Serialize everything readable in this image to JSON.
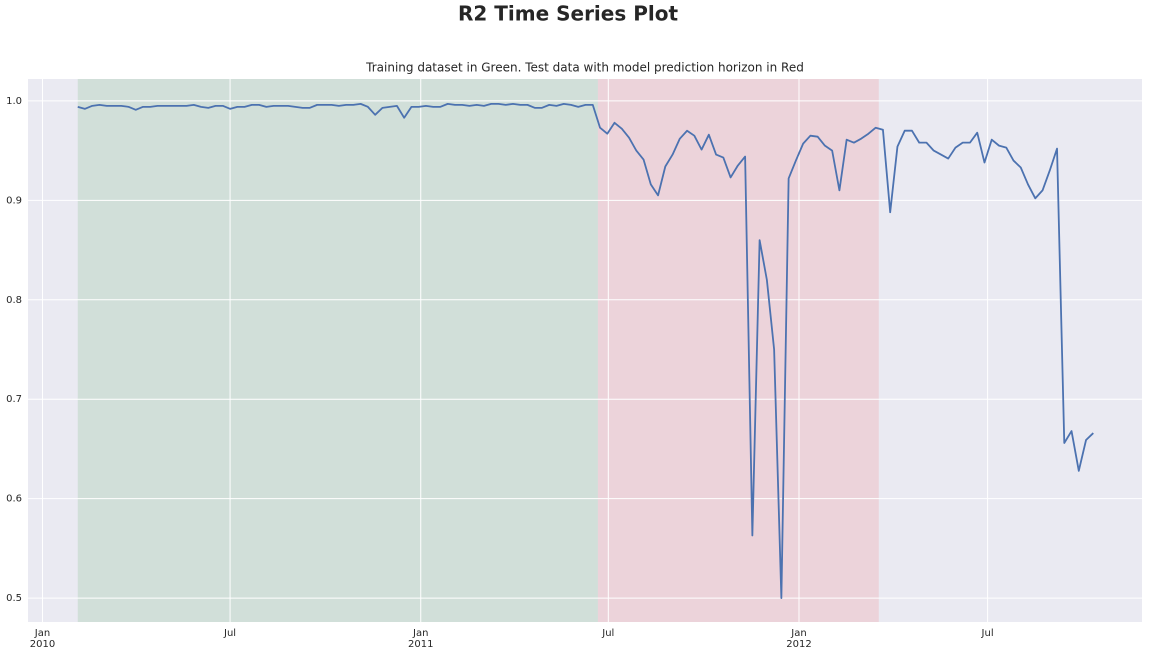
{
  "chart_data": {
    "type": "line",
    "title": "R2 Time Series Plot",
    "subtitle": "Training dataset in Green. Test data with model prediction horizon in Red",
    "xlim": [
      "2009-12-18",
      "2012-11-27"
    ],
    "ylim": [
      0.476,
      1.022
    ],
    "xticks": [
      {
        "value": "2010-01-01",
        "label": "Jan\n2010"
      },
      {
        "value": "2010-07-01",
        "label": "Jul"
      },
      {
        "value": "2011-01-01",
        "label": "Jan\n2011"
      },
      {
        "value": "2011-07-01",
        "label": "Jul"
      },
      {
        "value": "2012-01-01",
        "label": "Jan\n2012"
      },
      {
        "value": "2012-07-01",
        "label": "Jul"
      }
    ],
    "yticks": [
      0.5,
      0.6,
      0.7,
      0.8,
      0.9,
      {
        "value": 1,
        "label": "1.0"
      }
    ],
    "grid": true,
    "spans": [
      {
        "start": "2010-02-04",
        "end": "2011-06-21",
        "color": "#d1dfd9"
      },
      {
        "start": "2011-06-21",
        "end": "2012-03-18",
        "color": "#ecd3da"
      }
    ],
    "x": [
      "2010-02-04",
      "2010-02-11",
      "2010-02-18",
      "2010-02-25",
      "2010-03-04",
      "2010-03-11",
      "2010-03-18",
      "2010-03-25",
      "2010-04-01",
      "2010-04-08",
      "2010-04-15",
      "2010-04-22",
      "2010-04-29",
      "2010-05-06",
      "2010-05-13",
      "2010-05-20",
      "2010-05-27",
      "2010-06-03",
      "2010-06-10",
      "2010-06-17",
      "2010-06-24",
      "2010-07-01",
      "2010-07-08",
      "2010-07-15",
      "2010-07-22",
      "2010-07-29",
      "2010-08-05",
      "2010-08-12",
      "2010-08-19",
      "2010-08-26",
      "2010-09-02",
      "2010-09-09",
      "2010-09-16",
      "2010-09-23",
      "2010-09-30",
      "2010-10-07",
      "2010-10-14",
      "2010-10-21",
      "2010-10-28",
      "2010-11-04",
      "2010-11-11",
      "2010-11-18",
      "2010-11-25",
      "2010-12-02",
      "2010-12-09",
      "2010-12-16",
      "2010-12-23",
      "2010-12-30",
      "2011-01-06",
      "2011-01-13",
      "2011-01-20",
      "2011-01-27",
      "2011-02-03",
      "2011-02-10",
      "2011-02-17",
      "2011-02-24",
      "2011-03-03",
      "2011-03-10",
      "2011-03-17",
      "2011-03-24",
      "2011-03-31",
      "2011-04-07",
      "2011-04-14",
      "2011-04-21",
      "2011-04-28",
      "2011-05-05",
      "2011-05-12",
      "2011-05-19",
      "2011-05-26",
      "2011-06-02",
      "2011-06-09",
      "2011-06-16",
      "2011-06-23",
      "2011-06-30",
      "2011-07-07",
      "2011-07-14",
      "2011-07-21",
      "2011-07-28",
      "2011-08-04",
      "2011-08-11",
      "2011-08-18",
      "2011-08-25",
      "2011-09-01",
      "2011-09-08",
      "2011-09-15",
      "2011-09-22",
      "2011-09-29",
      "2011-10-06",
      "2011-10-13",
      "2011-10-20",
      "2011-10-27",
      "2011-11-03",
      "2011-11-10",
      "2011-11-17",
      "2011-11-24",
      "2011-12-01",
      "2011-12-08",
      "2011-12-15",
      "2011-12-22",
      "2011-12-29",
      "2012-01-05",
      "2012-01-12",
      "2012-01-19",
      "2012-01-26",
      "2012-02-02",
      "2012-02-09",
      "2012-02-16",
      "2012-02-23",
      "2012-03-01",
      "2012-03-08",
      "2012-03-15",
      "2012-03-22",
      "2012-03-29",
      "2012-04-05",
      "2012-04-12",
      "2012-04-19",
      "2012-04-26",
      "2012-05-03",
      "2012-05-10",
      "2012-05-17",
      "2012-05-24",
      "2012-05-31",
      "2012-06-07",
      "2012-06-14",
      "2012-06-21",
      "2012-06-28",
      "2012-07-05",
      "2012-07-12",
      "2012-07-19",
      "2012-07-26",
      "2012-08-02",
      "2012-08-09",
      "2012-08-16",
      "2012-08-23",
      "2012-08-30",
      "2012-09-06",
      "2012-09-13",
      "2012-09-20",
      "2012-09-27",
      "2012-10-04",
      "2012-10-11"
    ],
    "series": [
      {
        "color": "#4c72b0",
        "values": [
          0.994,
          0.992,
          0.995,
          0.996,
          0.995,
          0.995,
          0.995,
          0.994,
          0.991,
          0.994,
          0.994,
          0.995,
          0.995,
          0.995,
          0.995,
          0.995,
          0.996,
          0.994,
          0.993,
          0.995,
          0.995,
          0.992,
          0.994,
          0.994,
          0.996,
          0.996,
          0.994,
          0.995,
          0.995,
          0.995,
          0.994,
          0.993,
          0.993,
          0.996,
          0.996,
          0.996,
          0.995,
          0.996,
          0.996,
          0.997,
          0.994,
          0.986,
          0.993,
          0.994,
          0.995,
          0.983,
          0.994,
          0.994,
          0.995,
          0.994,
          0.994,
          0.997,
          0.996,
          0.996,
          0.995,
          0.996,
          0.995,
          0.997,
          0.997,
          0.996,
          0.997,
          0.996,
          0.996,
          0.993,
          0.993,
          0.996,
          0.995,
          0.997,
          0.996,
          0.994,
          0.996,
          0.996,
          0.973,
          0.967,
          0.978,
          0.972,
          0.963,
          0.95,
          0.941,
          0.916,
          0.905,
          0.934,
          0.946,
          0.962,
          0.97,
          0.965,
          0.951,
          0.966,
          0.946,
          0.943,
          0.923,
          0.935,
          0.944,
          0.563,
          0.86,
          0.82,
          0.75,
          0.5,
          0.922,
          0.94,
          0.957,
          0.965,
          0.964,
          0.955,
          0.95,
          0.91,
          0.961,
          0.958,
          0.962,
          0.967,
          0.973,
          0.971,
          0.888,
          0.954,
          0.97,
          0.97,
          0.958,
          0.958,
          0.95,
          0.946,
          0.942,
          0.953,
          0.958,
          0.958,
          0.968,
          0.938,
          0.961,
          0.955,
          0.953,
          0.94,
          0.933,
          0.916,
          0.902,
          0.91,
          0.93,
          0.952,
          0.656,
          0.668,
          0.628,
          0.659,
          0.666
        ]
      }
    ]
  }
}
